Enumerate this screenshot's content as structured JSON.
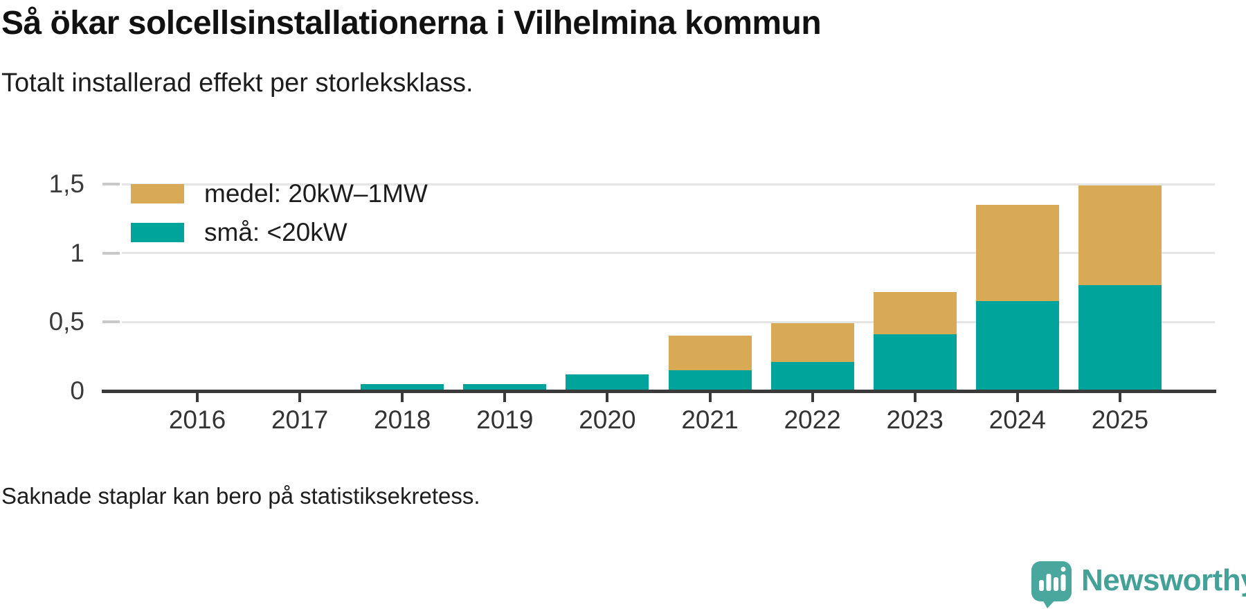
{
  "header": {
    "title": "Så ökar solcellsinstallationerna i Vilhelmina kommun",
    "subtitle": "Totalt installerad effekt per storleksklass."
  },
  "chart_data": {
    "type": "bar",
    "stacked": true,
    "title": "Så ökar solcellsinstallationerna i Vilhelmina kommun",
    "subtitle": "Totalt installerad effekt per storleksklass.",
    "categories": [
      "2016",
      "2017",
      "2018",
      "2019",
      "2020",
      "2021",
      "2022",
      "2023",
      "2024",
      "2025"
    ],
    "series": [
      {
        "key": "sma",
        "name": "små: <20kW",
        "color": "#00A49B",
        "values": [
          null,
          null,
          0.05,
          0.05,
          0.12,
          0.15,
          0.21,
          0.41,
          0.65,
          0.77
        ]
      },
      {
        "key": "medel",
        "name": "medel: 20kW–1MW",
        "color": "#D9AA55",
        "values": [
          null,
          null,
          null,
          null,
          null,
          0.25,
          0.28,
          0.31,
          0.7,
          0.72
        ]
      }
    ],
    "yticks": [
      {
        "value": 0,
        "label": "0"
      },
      {
        "value": 0.5,
        "label": "0,5"
      },
      {
        "value": 1,
        "label": "1"
      },
      {
        "value": 1.5,
        "label": "1,5"
      }
    ],
    "ylim": [
      0,
      1.5
    ],
    "xlabel": "",
    "ylabel": "",
    "grid": true,
    "legend_position": "top-left",
    "missing_bars_note": "Saknade staplar kan bero på statistiksekretess."
  },
  "legend": {
    "items": [
      {
        "label": "medel: 20kW–1MW",
        "color": "#D9AA55"
      },
      {
        "label": "små: <20kW",
        "color": "#00A49B"
      }
    ]
  },
  "footer": {
    "note": "Saknade staplar kan bero på statistiksekretess.",
    "brand": "Newsworthy"
  },
  "colors": {
    "small_series": "#00A49B",
    "medium_series": "#D9AA55",
    "axis": "#3a3a3a",
    "gridline": "#e5e5e5",
    "logo_icon": "#4AA79E",
    "logo_text": "#43A197"
  }
}
